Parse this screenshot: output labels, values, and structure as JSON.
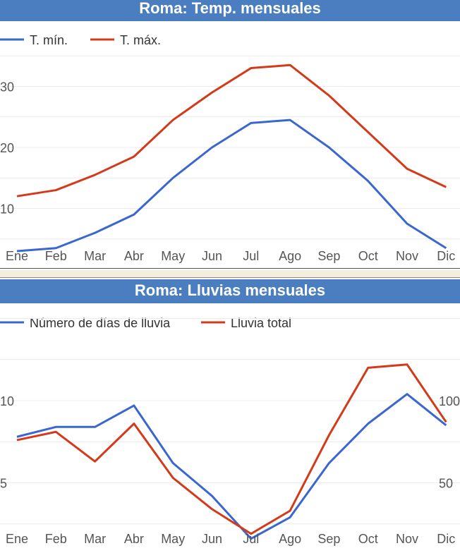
{
  "chart_data": [
    {
      "type": "line",
      "title": "Roma: Temp. mensuales",
      "categories": [
        "Ene",
        "Feb",
        "Mar",
        "Abr",
        "May",
        "Jun",
        "Jul",
        "Ago",
        "Sep",
        "Oct",
        "Nov",
        "Dic"
      ],
      "series": [
        {
          "name": "T. mín.",
          "color": "#3a66d0",
          "values": [
            3,
            3.5,
            6,
            9,
            15,
            20,
            24,
            24.5,
            20,
            14.5,
            7.5,
            3.5
          ]
        },
        {
          "name": "T. máx.",
          "color": "#d43a1a",
          "values": [
            12,
            13,
            15.5,
            18.5,
            24.5,
            29,
            33,
            33.5,
            28.5,
            22.5,
            16.5,
            13.5
          ]
        }
      ],
      "y_ticks": [
        "10",
        "20",
        "30"
      ],
      "grid": true,
      "legend": "top-left"
    },
    {
      "type": "line",
      "title": "Roma: Lluvias mensuales",
      "categories": [
        "Ene",
        "Feb",
        "Mar",
        "Abr",
        "May",
        "Jun",
        "Jul",
        "Ago",
        "Sep",
        "Oct",
        "Nov",
        "Dic"
      ],
      "series": [
        {
          "name": "Número de días de lluvia",
          "axis": "left",
          "color": "#3a66d0",
          "values": [
            7.8,
            8.4,
            8.4,
            9.7,
            6.2,
            4.2,
            1.6,
            2.9,
            6.2,
            8.6,
            10.4,
            8.5
          ]
        },
        {
          "name": "Lluvia total",
          "axis": "right",
          "color": "#d43a1a",
          "values": [
            76,
            81,
            63,
            86,
            53,
            34,
            19,
            33,
            79,
            120,
            122,
            87
          ]
        }
      ],
      "y_ticks_left": [
        "5",
        "10"
      ],
      "y_ticks_right": [
        "50",
        "100"
      ],
      "grid": true,
      "legend": "top-left"
    }
  ]
}
